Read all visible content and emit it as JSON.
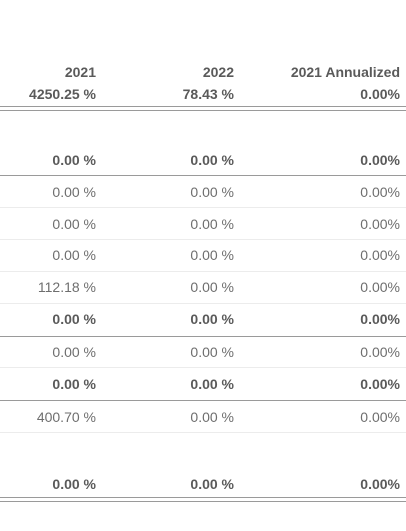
{
  "header": {
    "columns": [
      "2021",
      "2022",
      "2021 Annualized"
    ],
    "totals": [
      "4250.25 %",
      "78.43 %",
      "0.00%"
    ]
  },
  "rows": [
    {
      "style": "bold",
      "values": [
        "0.00 %",
        "0.00 %",
        "0.00%"
      ]
    },
    {
      "style": "reg",
      "values": [
        "0.00 %",
        "0.00 %",
        "0.00%"
      ]
    },
    {
      "style": "reg",
      "values": [
        "0.00 %",
        "0.00 %",
        "0.00%"
      ]
    },
    {
      "style": "reg",
      "values": [
        "0.00 %",
        "0.00 %",
        "0.00%"
      ]
    },
    {
      "style": "reg",
      "values": [
        "112.18 %",
        "0.00 %",
        "0.00%"
      ]
    },
    {
      "style": "bold",
      "values": [
        "0.00 %",
        "0.00 %",
        "0.00%"
      ]
    },
    {
      "style": "reg",
      "values": [
        "0.00 %",
        "0.00 %",
        "0.00%"
      ]
    },
    {
      "style": "bold",
      "values": [
        "0.00 %",
        "0.00 %",
        "0.00%"
      ]
    },
    {
      "style": "reg",
      "values": [
        "400.70 %",
        "0.00 %",
        "0.00%"
      ]
    },
    {
      "style": "bold",
      "values": [
        "0.00 %",
        "0.00 %",
        "0.00%"
      ]
    }
  ]
}
